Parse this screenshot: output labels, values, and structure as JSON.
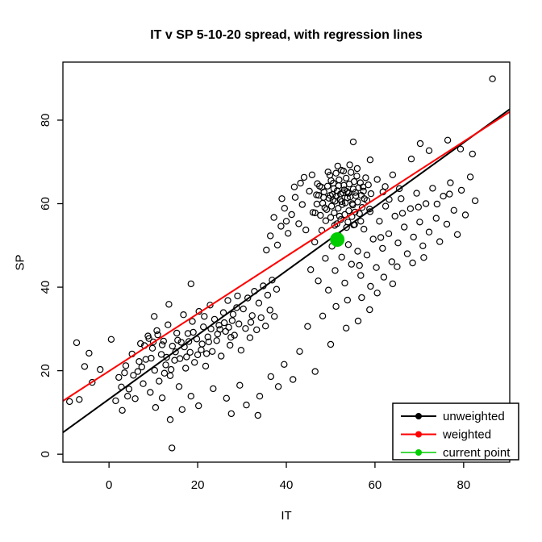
{
  "title": "IT v SP 5-10-20 spread, with regression lines",
  "chart_data": {
    "type": "scatter",
    "title": "IT v SP 5-10-20 spread, with regression lines",
    "xlabel": "IT",
    "ylabel": "SP",
    "xlim": [
      -10.4,
      90.4
    ],
    "ylim": [
      -1.9,
      93.9
    ],
    "xticks": [
      0,
      20,
      40,
      60,
      80
    ],
    "yticks": [
      0,
      20,
      40,
      60,
      80
    ],
    "grid": false,
    "marker": "open-circle",
    "point_color": "#000000",
    "legend": {
      "position": "bottom-right",
      "entries": [
        {
          "label": "unweighted",
          "color": "#000000"
        },
        {
          "label": "weighted",
          "color": "#ff0000"
        },
        {
          "label": "current point",
          "color": "#00cd00"
        }
      ]
    },
    "lines": [
      {
        "name": "unweighted",
        "intercept": 13.2,
        "slope": 0.768,
        "color": "#000000",
        "width": 2
      },
      {
        "name": "weighted",
        "intercept": 19.9,
        "slope": 0.687,
        "color": "#ff0000",
        "width": 2
      }
    ],
    "current_point": {
      "x": 51.5,
      "y": 51.4,
      "color": "#00cd00",
      "radius": 9
    },
    "points": [
      [
        47.7,
        57.2
      ],
      [
        48.2,
        60.1
      ],
      [
        48.5,
        62.8
      ],
      [
        48.9,
        55.9
      ],
      [
        49.1,
        58.6
      ],
      [
        49.3,
        64.2
      ],
      [
        49.6,
        61.3
      ],
      [
        49.8,
        66.8
      ],
      [
        50.0,
        56.7
      ],
      [
        50.2,
        59.4
      ],
      [
        50.4,
        62.2
      ],
      [
        50.6,
        64.9
      ],
      [
        50.8,
        57.8
      ],
      [
        51.0,
        60.6
      ],
      [
        51.2,
        67.3
      ],
      [
        51.4,
        55.2
      ],
      [
        51.5,
        63.1
      ],
      [
        51.7,
        58.9
      ],
      [
        51.9,
        65.7
      ],
      [
        52.1,
        61.0
      ],
      [
        52.3,
        56.2
      ],
      [
        52.4,
        68.0
      ],
      [
        52.6,
        59.8
      ],
      [
        52.8,
        62.6
      ],
      [
        53.0,
        64.4
      ],
      [
        53.2,
        57.4
      ],
      [
        53.3,
        60.2
      ],
      [
        53.5,
        66.1
      ],
      [
        53.7,
        62.9
      ],
      [
        53.9,
        55.6
      ],
      [
        54.1,
        58.3
      ],
      [
        54.2,
        64.7
      ],
      [
        54.4,
        61.6
      ],
      [
        54.6,
        67.5
      ],
      [
        54.8,
        56.9
      ],
      [
        55.0,
        59.7
      ],
      [
        55.1,
        63.5
      ],
      [
        55.3,
        65.3
      ],
      [
        55.5,
        58.0
      ],
      [
        55.7,
        61.9
      ],
      [
        55.9,
        66.6
      ],
      [
        56.1,
        60.4
      ],
      [
        56.3,
        63.8
      ],
      [
        56.5,
        57.6
      ],
      [
        56.7,
        65.0
      ],
      [
        56.9,
        62.0
      ],
      [
        57.1,
        59.1
      ],
      [
        57.3,
        64.0
      ],
      [
        57.6,
        61.2
      ],
      [
        57.9,
        66.2
      ],
      [
        48.0,
        63.9
      ],
      [
        48.7,
        59.0
      ],
      [
        49.4,
        67.6
      ],
      [
        50.1,
        65.5
      ],
      [
        50.9,
        54.8
      ],
      [
        51.6,
        69.0
      ],
      [
        52.0,
        57.0
      ],
      [
        52.9,
        67.8
      ],
      [
        53.6,
        54.3
      ],
      [
        54.3,
        69.3
      ],
      [
        55.2,
        54.9
      ],
      [
        56.0,
        68.4
      ],
      [
        56.8,
        55.8
      ],
      [
        57.4,
        63.0
      ],
      [
        58.2,
        60.8
      ],
      [
        58.5,
        64.5
      ],
      [
        58.8,
        58.7
      ],
      [
        59.1,
        62.4
      ],
      [
        46.9,
        59.9
      ],
      [
        47.3,
        62.0
      ],
      [
        47.0,
        64.8
      ],
      [
        46.5,
        57.8
      ],
      [
        51.3,
        61.8
      ],
      [
        52.5,
        60.5
      ],
      [
        53.8,
        61.4
      ],
      [
        50.5,
        60.9
      ],
      [
        49.9,
        62.0
      ],
      [
        54.9,
        60.0
      ],
      [
        53.1,
        63.3
      ],
      [
        52.2,
        62.3
      ],
      [
        51.8,
        64.3
      ],
      [
        50.7,
        63.6
      ],
      [
        54.0,
        62.5
      ],
      [
        55.6,
        62.7
      ],
      [
        48.4,
        61.5
      ],
      [
        1.5,
        12.8
      ],
      [
        2.2,
        18.4
      ],
      [
        3.0,
        10.5
      ],
      [
        3.8,
        21.2
      ],
      [
        4.5,
        15.6
      ],
      [
        5.2,
        24.0
      ],
      [
        5.9,
        13.3
      ],
      [
        6.5,
        19.8
      ],
      [
        7.1,
        26.5
      ],
      [
        7.7,
        16.9
      ],
      [
        8.3,
        22.7
      ],
      [
        8.8,
        28.3
      ],
      [
        9.3,
        14.8
      ],
      [
        9.8,
        25.4
      ],
      [
        10.3,
        20.1
      ],
      [
        10.8,
        29.6
      ],
      [
        11.3,
        17.5
      ],
      [
        11.8,
        23.9
      ],
      [
        12.3,
        27.1
      ],
      [
        12.8,
        21.4
      ],
      [
        13.3,
        31.0
      ],
      [
        13.8,
        18.8
      ],
      [
        14.3,
        25.9
      ],
      [
        14.8,
        22.5
      ],
      [
        15.3,
        29.0
      ],
      [
        15.8,
        16.2
      ],
      [
        16.3,
        26.8
      ],
      [
        16.8,
        33.4
      ],
      [
        17.3,
        20.6
      ],
      [
        17.8,
        28.9
      ],
      [
        18.3,
        24.4
      ],
      [
        18.8,
        31.8
      ],
      [
        19.3,
        22.0
      ],
      [
        19.8,
        27.6
      ],
      [
        20.3,
        34.2
      ],
      [
        20.8,
        25.0
      ],
      [
        21.3,
        30.5
      ],
      [
        21.8,
        21.1
      ],
      [
        22.3,
        28.1
      ],
      [
        22.8,
        35.7
      ],
      [
        23.3,
        24.6
      ],
      [
        23.8,
        32.3
      ],
      [
        24.3,
        27.2
      ],
      [
        24.8,
        30.9
      ],
      [
        25.3,
        23.5
      ],
      [
        25.8,
        33.9
      ],
      [
        26.3,
        29.4
      ],
      [
        26.8,
        36.8
      ],
      [
        27.3,
        26.1
      ],
      [
        27.8,
        32.0
      ],
      [
        28.3,
        28.5
      ],
      [
        28.8,
        35.1
      ],
      [
        29.3,
        31.2
      ],
      [
        29.8,
        24.9
      ],
      [
        30.3,
        34.8
      ],
      [
        30.8,
        30.1
      ],
      [
        31.3,
        37.4
      ],
      [
        31.8,
        27.9
      ],
      [
        32.3,
        33.2
      ],
      [
        32.8,
        39.0
      ],
      [
        33.3,
        29.8
      ],
      [
        33.8,
        36.2
      ],
      [
        34.3,
        32.7
      ],
      [
        34.8,
        40.3
      ],
      [
        35.3,
        30.7
      ],
      [
        35.8,
        38.1
      ],
      [
        36.3,
        34.5
      ],
      [
        36.8,
        41.7
      ],
      [
        37.3,
        33.0
      ],
      [
        37.8,
        39.5
      ],
      [
        8.0,
        26.0
      ],
      [
        9.0,
        27.7
      ],
      [
        10.0,
        26.9
      ],
      [
        11.0,
        28.6
      ],
      [
        12.0,
        26.2
      ],
      [
        25.0,
        29.9
      ],
      [
        26.0,
        31.5
      ],
      [
        27.0,
        30.4
      ],
      [
        28.0,
        33.5
      ],
      [
        24.5,
        28.8
      ],
      [
        23.0,
        30.0
      ],
      [
        6.8,
        22.2
      ],
      [
        5.5,
        18.9
      ],
      [
        4.2,
        13.9
      ],
      [
        2.8,
        16.1
      ],
      [
        13.0,
        23.2
      ],
      [
        14.0,
        20.3
      ],
      [
        15.0,
        24.5
      ],
      [
        16.0,
        22.9
      ],
      [
        17.0,
        25.7
      ],
      [
        18.0,
        27.0
      ],
      [
        19.0,
        29.2
      ],
      [
        20.0,
        23.8
      ],
      [
        21.0,
        26.4
      ],
      [
        22.0,
        24.1
      ],
      [
        7.4,
        20.9
      ],
      [
        12.5,
        19.4
      ],
      [
        17.5,
        23.3
      ],
      [
        22.5,
        26.9
      ],
      [
        27.5,
        28.0
      ],
      [
        32.0,
        31.6
      ],
      [
        3.5,
        19.5
      ],
      [
        9.5,
        23.0
      ],
      [
        15.5,
        27.3
      ],
      [
        21.5,
        33.0
      ],
      [
        29.0,
        37.9
      ],
      [
        45.5,
        44.2
      ],
      [
        46.4,
        50.8
      ],
      [
        47.2,
        41.5
      ],
      [
        48.0,
        53.6
      ],
      [
        48.8,
        46.9
      ],
      [
        49.5,
        39.3
      ],
      [
        50.3,
        49.8
      ],
      [
        51.0,
        44.0
      ],
      [
        51.8,
        52.4
      ],
      [
        52.5,
        47.2
      ],
      [
        53.2,
        41.0
      ],
      [
        54.0,
        50.2
      ],
      [
        54.7,
        45.5
      ],
      [
        55.4,
        55.0
      ],
      [
        56.1,
        48.6
      ],
      [
        56.8,
        42.8
      ],
      [
        57.5,
        53.9
      ],
      [
        58.2,
        47.7
      ],
      [
        58.9,
        58.1
      ],
      [
        59.6,
        51.5
      ],
      [
        60.3,
        44.7
      ],
      [
        61.0,
        55.8
      ],
      [
        61.7,
        49.3
      ],
      [
        62.4,
        59.4
      ],
      [
        63.1,
        52.8
      ],
      [
        63.8,
        46.1
      ],
      [
        64.5,
        57.0
      ],
      [
        65.2,
        50.6
      ],
      [
        65.9,
        61.2
      ],
      [
        66.6,
        54.4
      ],
      [
        67.3,
        48.0
      ],
      [
        68.0,
        58.8
      ],
      [
        68.7,
        52.0
      ],
      [
        69.4,
        62.5
      ],
      [
        70.1,
        55.6
      ],
      [
        70.8,
        49.9
      ],
      [
        71.5,
        60.0
      ],
      [
        72.2,
        53.2
      ],
      [
        73.0,
        63.7
      ],
      [
        73.8,
        56.5
      ],
      [
        74.6,
        50.9
      ],
      [
        75.4,
        61.8
      ],
      [
        76.2,
        55.1
      ],
      [
        77.0,
        65.0
      ],
      [
        77.8,
        58.4
      ],
      [
        78.6,
        52.6
      ],
      [
        79.5,
        63.2
      ],
      [
        80.4,
        57.3
      ],
      [
        81.5,
        66.4
      ],
      [
        82.6,
        60.7
      ],
      [
        59.0,
        40.2
      ],
      [
        62.0,
        42.4
      ],
      [
        65.0,
        44.9
      ],
      [
        68.5,
        45.8
      ],
      [
        71.0,
        47.1
      ],
      [
        57.0,
        37.5
      ],
      [
        60.5,
        38.6
      ],
      [
        64.0,
        40.8
      ],
      [
        74.0,
        59.9
      ],
      [
        76.8,
        62.3
      ],
      [
        53.8,
        36.9
      ],
      [
        56.5,
        45.2
      ],
      [
        66.2,
        57.7
      ],
      [
        69.8,
        59.2
      ],
      [
        61.3,
        51.9
      ],
      [
        35.5,
        48.9
      ],
      [
        36.4,
        52.3
      ],
      [
        37.2,
        56.7
      ],
      [
        38.0,
        50.1
      ],
      [
        38.8,
        54.6
      ],
      [
        39.6,
        58.9
      ],
      [
        40.4,
        52.9
      ],
      [
        41.2,
        57.4
      ],
      [
        42.0,
        61.5
      ],
      [
        42.8,
        55.2
      ],
      [
        43.6,
        59.8
      ],
      [
        44.4,
        53.7
      ],
      [
        45.2,
        63.0
      ],
      [
        46.0,
        57.9
      ],
      [
        46.8,
        62.1
      ],
      [
        44.0,
        66.3
      ],
      [
        41.8,
        64.0
      ],
      [
        39.0,
        61.2
      ],
      [
        43.2,
        64.9
      ],
      [
        45.8,
        66.9
      ],
      [
        47.5,
        64.2
      ],
      [
        40.0,
        55.8
      ],
      [
        86.5,
        89.9
      ],
      [
        76.4,
        75.2
      ],
      [
        72.2,
        72.7
      ],
      [
        70.2,
        74.4
      ],
      [
        68.2,
        70.7
      ],
      [
        58.9,
        70.5
      ],
      [
        55.1,
        74.8
      ],
      [
        79.3,
        73.1
      ],
      [
        82.0,
        71.9
      ],
      [
        14.2,
        1.5
      ],
      [
        10.5,
        11.2
      ],
      [
        20.2,
        11.6
      ],
      [
        27.6,
        9.7
      ],
      [
        33.6,
        9.3
      ],
      [
        -8.9,
        12.6
      ],
      [
        -6.7,
        13.1
      ],
      [
        -3.8,
        17.2
      ],
      [
        -5.5,
        21.0
      ],
      [
        -2.0,
        20.3
      ],
      [
        -7.3,
        26.7
      ],
      [
        -4.5,
        24.2
      ],
      [
        0.5,
        27.5
      ],
      [
        18.5,
        40.8
      ],
      [
        13.5,
        35.9
      ],
      [
        10.2,
        33.0
      ],
      [
        39.5,
        21.5
      ],
      [
        43.0,
        24.6
      ],
      [
        46.5,
        19.8
      ],
      [
        50.0,
        26.3
      ],
      [
        53.5,
        30.2
      ],
      [
        48.2,
        33.1
      ],
      [
        41.5,
        17.9
      ],
      [
        44.8,
        30.6
      ],
      [
        51.2,
        35.4
      ],
      [
        56.2,
        31.9
      ],
      [
        58.8,
        34.6
      ],
      [
        36.5,
        18.6
      ],
      [
        34.0,
        13.9
      ],
      [
        38.2,
        16.2
      ],
      [
        31.0,
        11.8
      ],
      [
        29.5,
        16.5
      ],
      [
        26.5,
        13.4
      ],
      [
        23.5,
        15.7
      ],
      [
        18.5,
        13.9
      ],
      [
        16.5,
        10.7
      ],
      [
        13.8,
        8.3
      ],
      [
        12.0,
        13.5
      ],
      [
        60.5,
        65.8
      ],
      [
        62.3,
        64.1
      ],
      [
        64.0,
        66.9
      ],
      [
        61.8,
        62.8
      ],
      [
        63.2,
        61.0
      ],
      [
        65.5,
        63.6
      ]
    ]
  }
}
